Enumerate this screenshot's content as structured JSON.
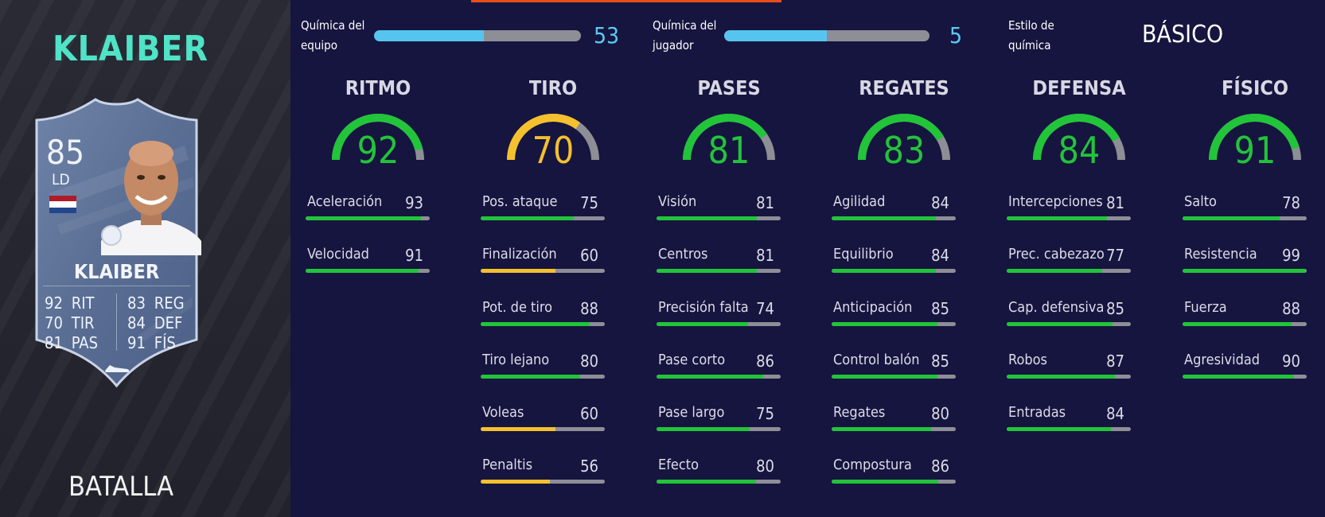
{
  "player": {
    "name": "KLAIBER",
    "card_name": "KLAIBER",
    "rating": "85",
    "position": "LD",
    "version": "BATALLA",
    "card_stats": [
      {
        "value": "92",
        "label": "RIT"
      },
      {
        "value": "70",
        "label": "TIR"
      },
      {
        "value": "81",
        "label": "PAS"
      },
      {
        "value": "83",
        "label": "REG"
      },
      {
        "value": "84",
        "label": "DEF"
      },
      {
        "value": "91",
        "label": "FÍS"
      }
    ],
    "flag_colors": [
      "#ae1c28",
      "#ffffff",
      "#21468b"
    ]
  },
  "chemistry": {
    "team": {
      "label_line1": "Química del",
      "label_line2": "equipo",
      "value": "53",
      "fill": 0.53
    },
    "player": {
      "label_line1": "Química del",
      "label_line2": "jugador",
      "value": "5",
      "fill": 0.5
    },
    "style": {
      "label_line1": "Estilo de",
      "label_line2": "química",
      "value": "BÁSICO"
    }
  },
  "colors": {
    "green": "#22c43a",
    "yellow": "#f4c02e",
    "track": "#8e8e97",
    "accent": "#4fe3c7",
    "chem_blue": "#55c5f0"
  },
  "categories": [
    {
      "title": "RITMO",
      "value": 92,
      "value_text": "92",
      "attributes": [
        {
          "label": "Aceleración",
          "value": 93,
          "value_text": "93"
        },
        {
          "label": "Velocidad",
          "value": 91,
          "value_text": "91"
        }
      ]
    },
    {
      "title": "TIRO",
      "value": 70,
      "value_text": "70",
      "attributes": [
        {
          "label": "Pos. ataque",
          "value": 75,
          "value_text": "75"
        },
        {
          "label": "Finalización",
          "value": 60,
          "value_text": "60"
        },
        {
          "label": "Pot. de tiro",
          "value": 88,
          "value_text": "88"
        },
        {
          "label": "Tiro lejano",
          "value": 80,
          "value_text": "80"
        },
        {
          "label": "Voleas",
          "value": 60,
          "value_text": "60"
        },
        {
          "label": "Penaltis",
          "value": 56,
          "value_text": "56"
        }
      ]
    },
    {
      "title": "PASES",
      "value": 81,
      "value_text": "81",
      "attributes": [
        {
          "label": "Visión",
          "value": 81,
          "value_text": "81"
        },
        {
          "label": "Centros",
          "value": 81,
          "value_text": "81"
        },
        {
          "label": "Precisión falta",
          "value": 74,
          "value_text": "74"
        },
        {
          "label": "Pase corto",
          "value": 86,
          "value_text": "86"
        },
        {
          "label": "Pase largo",
          "value": 75,
          "value_text": "75"
        },
        {
          "label": "Efecto",
          "value": 80,
          "value_text": "80"
        }
      ]
    },
    {
      "title": "REGATES",
      "value": 83,
      "value_text": "83",
      "attributes": [
        {
          "label": "Agilidad",
          "value": 84,
          "value_text": "84"
        },
        {
          "label": "Equilibrio",
          "value": 84,
          "value_text": "84"
        },
        {
          "label": "Anticipación",
          "value": 85,
          "value_text": "85"
        },
        {
          "label": "Control balón",
          "value": 85,
          "value_text": "85"
        },
        {
          "label": "Regates",
          "value": 80,
          "value_text": "80"
        },
        {
          "label": "Compostura",
          "value": 86,
          "value_text": "86"
        }
      ]
    },
    {
      "title": "DEFENSA",
      "value": 84,
      "value_text": "84",
      "attributes": [
        {
          "label": "Intercepciones",
          "value": 81,
          "value_text": "81"
        },
        {
          "label": "Prec. cabezazo",
          "value": 77,
          "value_text": "77"
        },
        {
          "label": "Cap. defensiva",
          "value": 85,
          "value_text": "85"
        },
        {
          "label": "Robos",
          "value": 87,
          "value_text": "87"
        },
        {
          "label": "Entradas",
          "value": 84,
          "value_text": "84"
        }
      ]
    },
    {
      "title": "FÍSICO",
      "value": 91,
      "value_text": "91",
      "attributes": [
        {
          "label": "Salto",
          "value": 78,
          "value_text": "78"
        },
        {
          "label": "Resistencia",
          "value": 99,
          "value_text": "99"
        },
        {
          "label": "Fuerza",
          "value": 88,
          "value_text": "88"
        },
        {
          "label": "Agresividad",
          "value": 90,
          "value_text": "90"
        }
      ]
    }
  ]
}
